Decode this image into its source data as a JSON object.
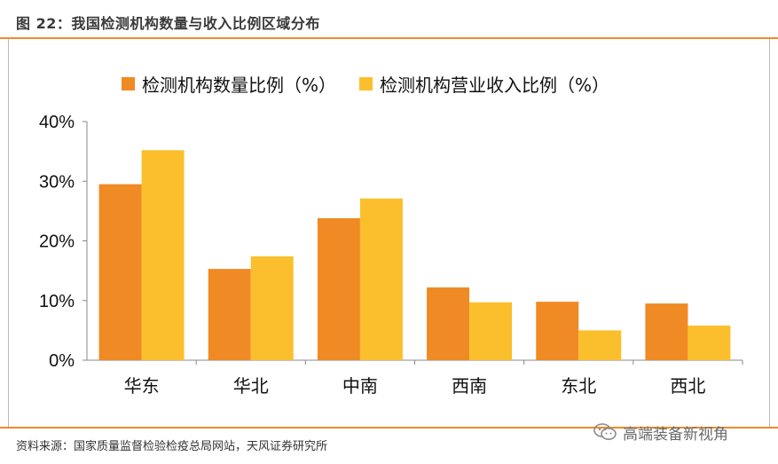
{
  "header": {
    "title": "图 22：我国检测机构数量与收入比例区域分布"
  },
  "footer": {
    "source": "资料来源：国家质量监督检验检疫总局网站，天风证券研究所",
    "watermark": "高端装备新视角"
  },
  "colors": {
    "accent": "#f08b2c",
    "series1": "#f08a24",
    "series2": "#fbbf2d",
    "axis": "#888888"
  },
  "chart_data": {
    "type": "bar",
    "categories": [
      "华东",
      "华北",
      "中南",
      "西南",
      "东北",
      "西北"
    ],
    "series": [
      {
        "name": "检测机构数量比例（%）",
        "values": [
          29.5,
          15.3,
          23.8,
          12.2,
          9.8,
          9.5
        ]
      },
      {
        "name": "检测机构营业收入比例（%）",
        "values": [
          35.2,
          17.4,
          27.1,
          9.7,
          5.0,
          5.8
        ]
      }
    ],
    "ylim": [
      0,
      40
    ],
    "yticks": [
      "0%",
      "10%",
      "20%",
      "30%",
      "40%"
    ],
    "legend_position": "top",
    "grid": false
  }
}
